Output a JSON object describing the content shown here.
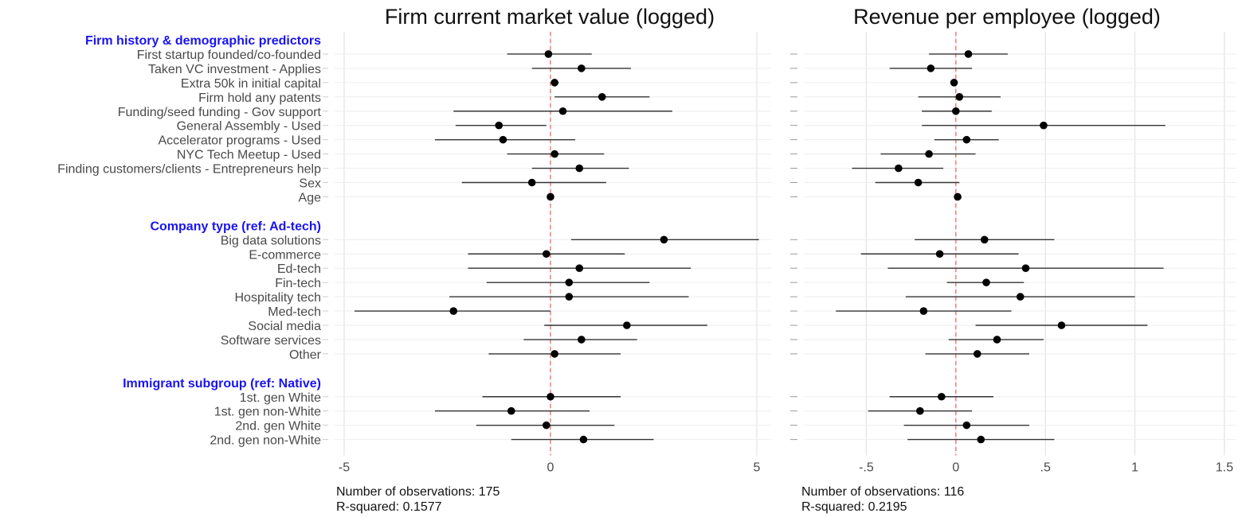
{
  "chart_data": {
    "type": "coefficient_plot",
    "groups": [
      {
        "label": "Firm history & demographic predictors",
        "rows": [
          "First startup founded/co-founded",
          "Taken VC investment - Applies",
          "Extra 50k in initial capital",
          "Firm hold any patents",
          "Funding/seed funding - Gov support",
          "General Assembly - Used",
          "Accelerator programs - Used",
          "NYC Tech Meetup - Used",
          "Finding customers/clients - Entrepreneurs help",
          "Sex",
          "Age"
        ]
      },
      {
        "label": "Company type (ref: Ad-tech)",
        "rows": [
          "Big data solutions",
          "E-commerce",
          "Ed-tech",
          "Fin-tech",
          "Hospitality tech",
          "Med-tech",
          "Social media",
          "Software services",
          "Other"
        ]
      },
      {
        "label": "Immigrant subgroup (ref: Native)",
        "rows": [
          "1st. gen White",
          "1st. gen non-White",
          "2nd. gen White",
          "2nd. gen non-White"
        ]
      }
    ],
    "panels": [
      {
        "title": "Firm current market value (logged)",
        "xlim": [
          -5,
          5
        ],
        "ticks": [
          {
            "value": -5,
            "label": "-5"
          },
          {
            "value": 0,
            "label": "0"
          },
          {
            "value": 5,
            "label": "5"
          }
        ],
        "estimates": [
          {
            "point": -0.05,
            "lo": -1.05,
            "hi": 1.0
          },
          {
            "point": 0.75,
            "lo": -0.45,
            "hi": 1.95
          },
          {
            "point": 0.1,
            "lo": 0.0,
            "hi": 0.2
          },
          {
            "point": 1.25,
            "lo": 0.1,
            "hi": 2.4
          },
          {
            "point": 0.3,
            "lo": -2.35,
            "hi": 2.95
          },
          {
            "point": -1.25,
            "lo": -2.3,
            "hi": -0.1
          },
          {
            "point": -1.15,
            "lo": -2.8,
            "hi": 0.6
          },
          {
            "point": 0.1,
            "lo": -1.05,
            "hi": 1.3
          },
          {
            "point": 0.7,
            "lo": -0.45,
            "hi": 1.9
          },
          {
            "point": -0.45,
            "lo": -2.15,
            "hi": 1.35
          },
          {
            "point": 0.0,
            "lo": -0.05,
            "hi": 0.05
          },
          {
            "point": 2.75,
            "lo": 0.5,
            "hi": 5.05
          },
          {
            "point": -0.1,
            "lo": -2.0,
            "hi": 1.8
          },
          {
            "point": 0.7,
            "lo": -2.0,
            "hi": 3.4
          },
          {
            "point": 0.45,
            "lo": -1.55,
            "hi": 2.4
          },
          {
            "point": 0.45,
            "lo": -2.45,
            "hi": 3.35
          },
          {
            "point": -2.35,
            "lo": -4.75,
            "hi": 0.0
          },
          {
            "point": 1.85,
            "lo": -0.15,
            "hi": 3.8
          },
          {
            "point": 0.75,
            "lo": -0.65,
            "hi": 2.1
          },
          {
            "point": 0.1,
            "lo": -1.5,
            "hi": 1.7
          },
          {
            "point": 0.0,
            "lo": -1.65,
            "hi": 1.7
          },
          {
            "point": -0.95,
            "lo": -2.8,
            "hi": 0.95
          },
          {
            "point": -0.1,
            "lo": -1.8,
            "hi": 1.55
          },
          {
            "point": 0.8,
            "lo": -0.95,
            "hi": 2.5
          }
        ],
        "footer": [
          "Number of observations: 175",
          "R-squared: 0.1577"
        ]
      },
      {
        "title": "Revenue per employee (logged)",
        "xlim": [
          -0.8,
          1.5
        ],
        "ticks": [
          {
            "value": -0.5,
            "label": "-.5"
          },
          {
            "value": 0,
            "label": "0"
          },
          {
            "value": 0.5,
            "label": ".5"
          },
          {
            "value": 1,
            "label": "1"
          },
          {
            "value": 1.5,
            "label": "1.5"
          }
        ],
        "estimates": [
          {
            "point": 0.07,
            "lo": -0.15,
            "hi": 0.29
          },
          {
            "point": -0.14,
            "lo": -0.37,
            "hi": 0.09
          },
          {
            "point": -0.01,
            "lo": -0.03,
            "hi": 0.01
          },
          {
            "point": 0.02,
            "lo": -0.21,
            "hi": 0.25
          },
          {
            "point": 0.0,
            "lo": -0.19,
            "hi": 0.2
          },
          {
            "point": 0.49,
            "lo": -0.19,
            "hi": 1.17
          },
          {
            "point": 0.06,
            "lo": -0.12,
            "hi": 0.24
          },
          {
            "point": -0.15,
            "lo": -0.42,
            "hi": 0.11
          },
          {
            "point": -0.32,
            "lo": -0.58,
            "hi": -0.07
          },
          {
            "point": -0.21,
            "lo": -0.45,
            "hi": 0.02
          },
          {
            "point": 0.01,
            "lo": 0.0,
            "hi": 0.02
          },
          {
            "point": 0.16,
            "lo": -0.23,
            "hi": 0.55
          },
          {
            "point": -0.09,
            "lo": -0.53,
            "hi": 0.35
          },
          {
            "point": 0.39,
            "lo": -0.38,
            "hi": 1.16
          },
          {
            "point": 0.17,
            "lo": -0.05,
            "hi": 0.38
          },
          {
            "point": 0.36,
            "lo": -0.28,
            "hi": 1.0
          },
          {
            "point": -0.18,
            "lo": -0.67,
            "hi": 0.31
          },
          {
            "point": 0.59,
            "lo": 0.11,
            "hi": 1.07
          },
          {
            "point": 0.23,
            "lo": -0.04,
            "hi": 0.49
          },
          {
            "point": 0.12,
            "lo": -0.17,
            "hi": 0.41
          },
          {
            "point": -0.08,
            "lo": -0.37,
            "hi": 0.21
          },
          {
            "point": -0.2,
            "lo": -0.49,
            "hi": 0.09
          },
          {
            "point": 0.06,
            "lo": -0.29,
            "hi": 0.41
          },
          {
            "point": 0.14,
            "lo": -0.27,
            "hi": 0.55
          }
        ],
        "footer": [
          "Number of observations: 116",
          "R-squared: 0.2195"
        ]
      }
    ],
    "reference_line": {
      "value": 0,
      "color": "#ee6b6b",
      "style": "dashed"
    },
    "colors": {
      "group_label": "#1a14ee",
      "point": "#000000",
      "ci": "#333333",
      "grid": "#e3e3e3"
    },
    "grid": true
  }
}
